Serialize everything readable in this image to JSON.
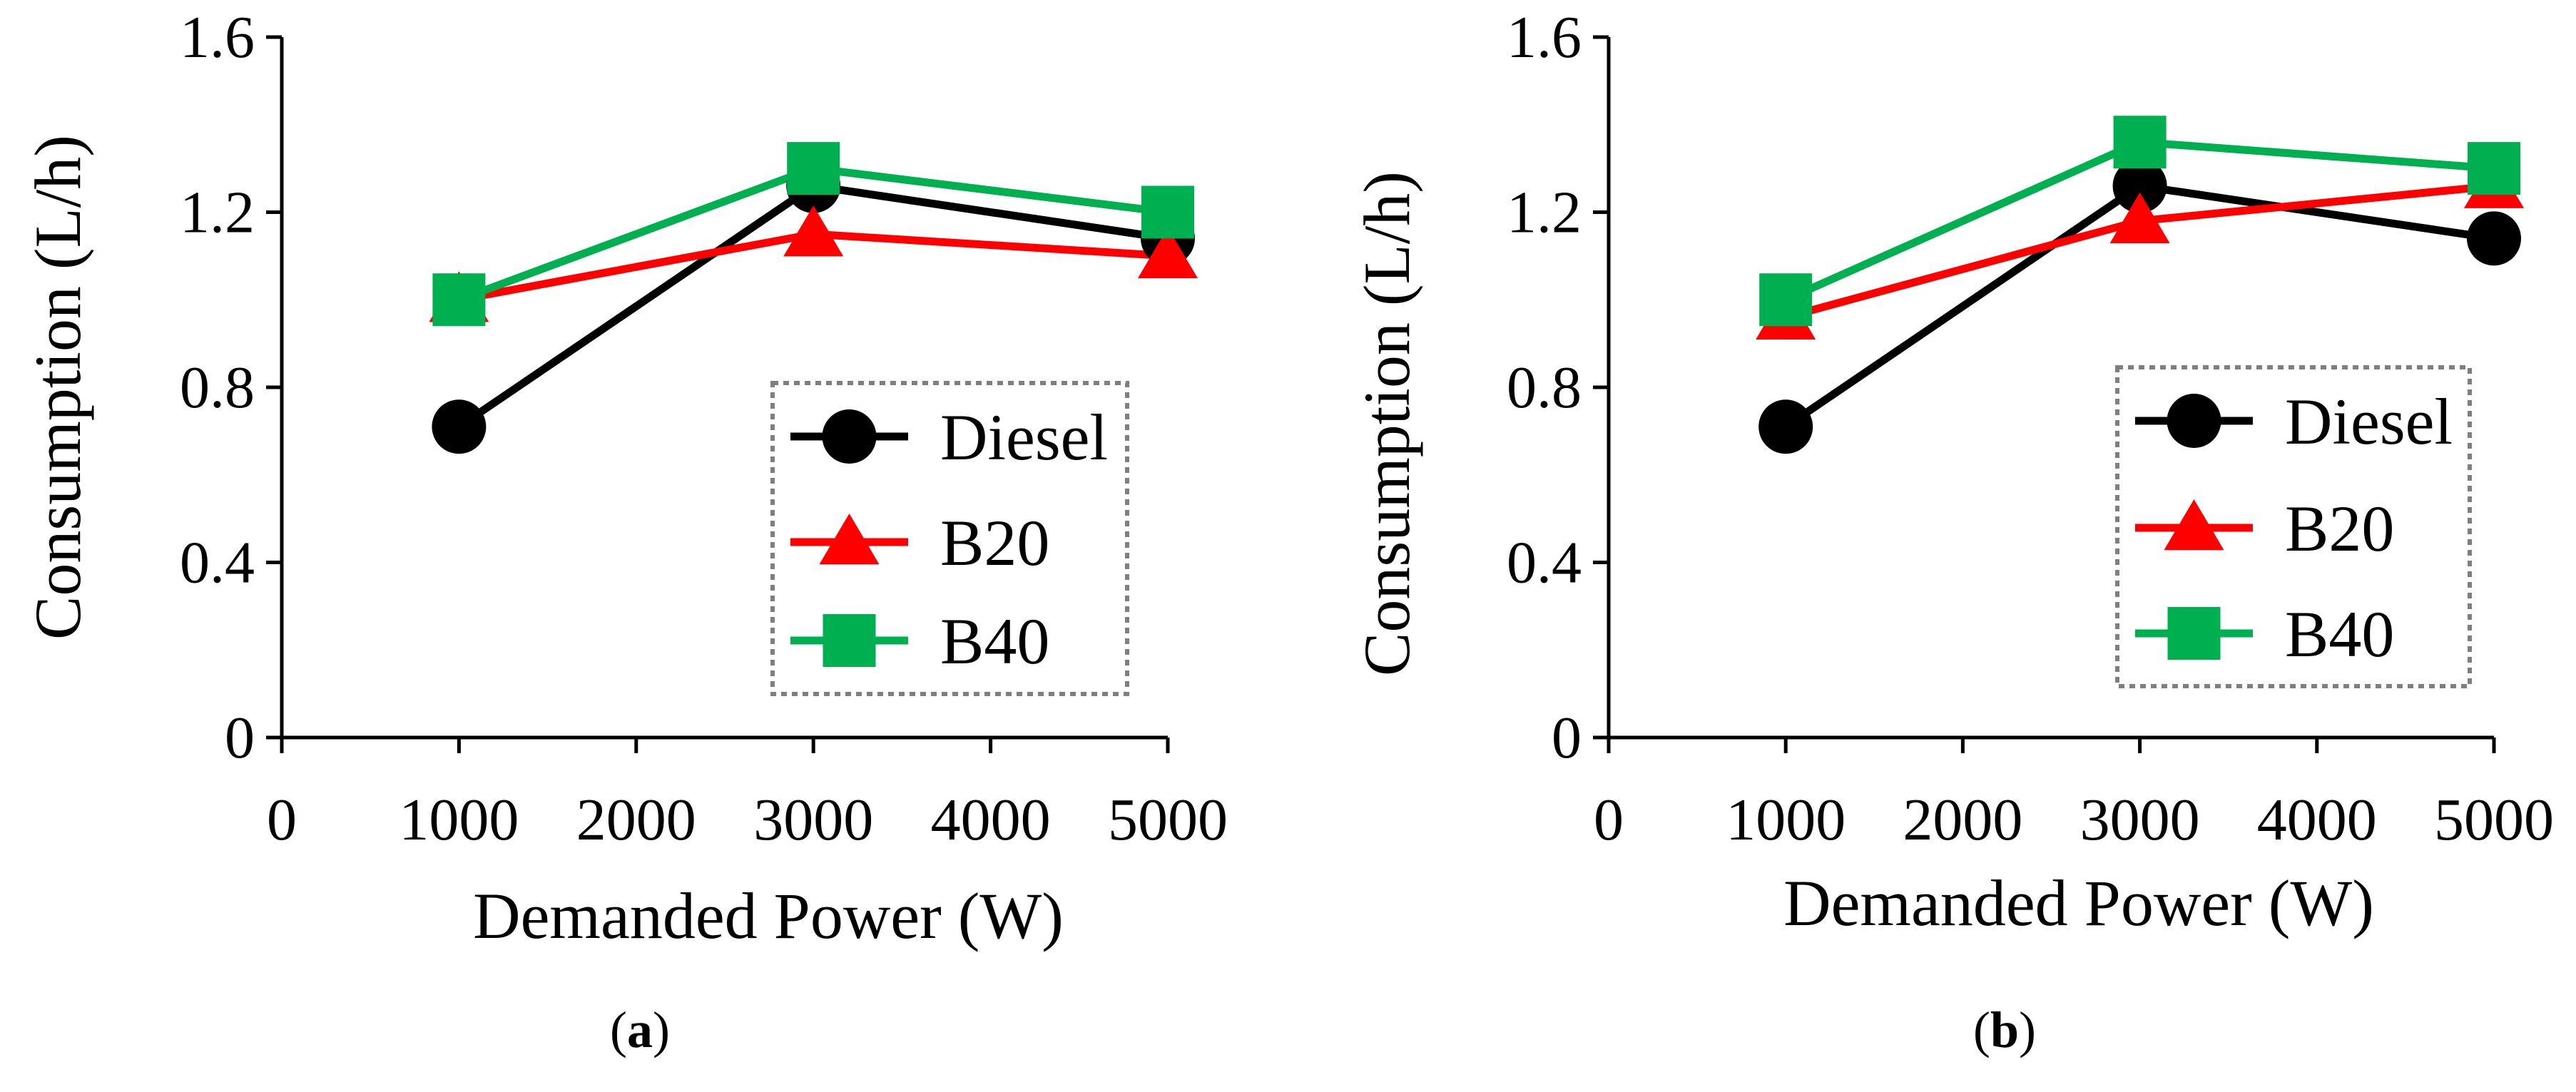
{
  "chart_data": [
    {
      "type": "line",
      "panel_label": "a",
      "caption": "(a)",
      "xlabel": "Demanded Power (W)",
      "ylabel": "Consumption (L/h)",
      "x": [
        1000,
        3000,
        5000
      ],
      "xlim": [
        0,
        5000
      ],
      "ylim": [
        0,
        1.6
      ],
      "xticks": [
        "0",
        "1000",
        "2000",
        "3000",
        "4000",
        "5000"
      ],
      "yticks": [
        "0",
        "0.4",
        "0.8",
        "1.2",
        "1.6"
      ],
      "grid": false,
      "legend_position": "bottom-right",
      "series": [
        {
          "name": "Diesel",
          "values": [
            0.71,
            1.26,
            1.14
          ],
          "color": "#000000",
          "marker": "circle"
        },
        {
          "name": "B20",
          "values": [
            1.0,
            1.15,
            1.1
          ],
          "color": "#ff0000",
          "marker": "triangle"
        },
        {
          "name": "B40",
          "values": [
            1.0,
            1.3,
            1.2
          ],
          "color": "#00b050",
          "marker": "square"
        }
      ]
    },
    {
      "type": "line",
      "panel_label": "b",
      "caption": "(b)",
      "xlabel": "Demanded Power (W)",
      "ylabel": "Consumption (L/h)",
      "x": [
        1000,
        3000,
        5000
      ],
      "xlim": [
        0,
        5000
      ],
      "ylim": [
        0,
        1.6
      ],
      "xticks": [
        "0",
        "1000",
        "2000",
        "3000",
        "4000",
        "5000"
      ],
      "yticks": [
        "0",
        "0.4",
        "0.8",
        "1.2",
        "1.6"
      ],
      "grid": false,
      "legend_position": "bottom-right",
      "series": [
        {
          "name": "Diesel",
          "values": [
            0.71,
            1.26,
            1.14
          ],
          "color": "#000000",
          "marker": "circle"
        },
        {
          "name": "B20",
          "values": [
            0.96,
            1.18,
            1.26
          ],
          "color": "#ff0000",
          "marker": "triangle"
        },
        {
          "name": "B40",
          "values": [
            1.0,
            1.36,
            1.3
          ],
          "color": "#00b050",
          "marker": "square"
        }
      ]
    }
  ]
}
